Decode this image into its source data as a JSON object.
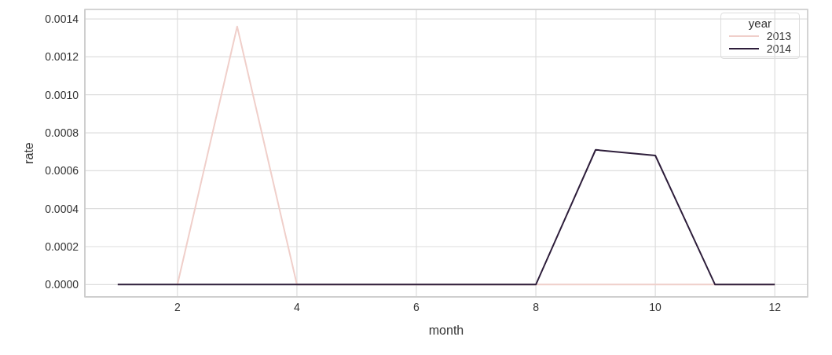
{
  "chart_data": {
    "type": "line",
    "xlabel": "month",
    "ylabel": "rate",
    "legend_title": "year",
    "legend": "top right",
    "grid": true,
    "xlim": [
      0.45,
      12.55
    ],
    "xticks": [
      2,
      4,
      6,
      8,
      10,
      12
    ],
    "ylim": [
      -6.5e-05,
      0.00145
    ],
    "yticks": [
      {
        "value": 0,
        "label": "0.0000"
      },
      {
        "value": 0.0002,
        "label": "0.0002"
      },
      {
        "value": 0.0004,
        "label": "0.0004"
      },
      {
        "value": 0.0006,
        "label": "0.0006"
      },
      {
        "value": 0.0008,
        "label": "0.0008"
      },
      {
        "value": 0.001,
        "label": "0.0010"
      },
      {
        "value": 0.0012,
        "label": "0.0012"
      },
      {
        "value": 0.0014,
        "label": "0.0014"
      }
    ],
    "series": [
      {
        "name": "2013",
        "color": "#f0cfca",
        "x": [
          2,
          3,
          4,
          5,
          6,
          7,
          8,
          9,
          10,
          11,
          12
        ],
        "values": [
          0,
          0.00136,
          0,
          0,
          0,
          0,
          0,
          0,
          0,
          0,
          0
        ]
      },
      {
        "name": "2014",
        "color": "#2e1e3b",
        "x": [
          1,
          2,
          3,
          4,
          5,
          6,
          7,
          8,
          9,
          10,
          11,
          12
        ],
        "values": [
          0,
          0,
          0,
          0,
          0,
          0,
          0,
          0,
          0.00071,
          0.00068,
          0,
          0
        ]
      }
    ]
  }
}
